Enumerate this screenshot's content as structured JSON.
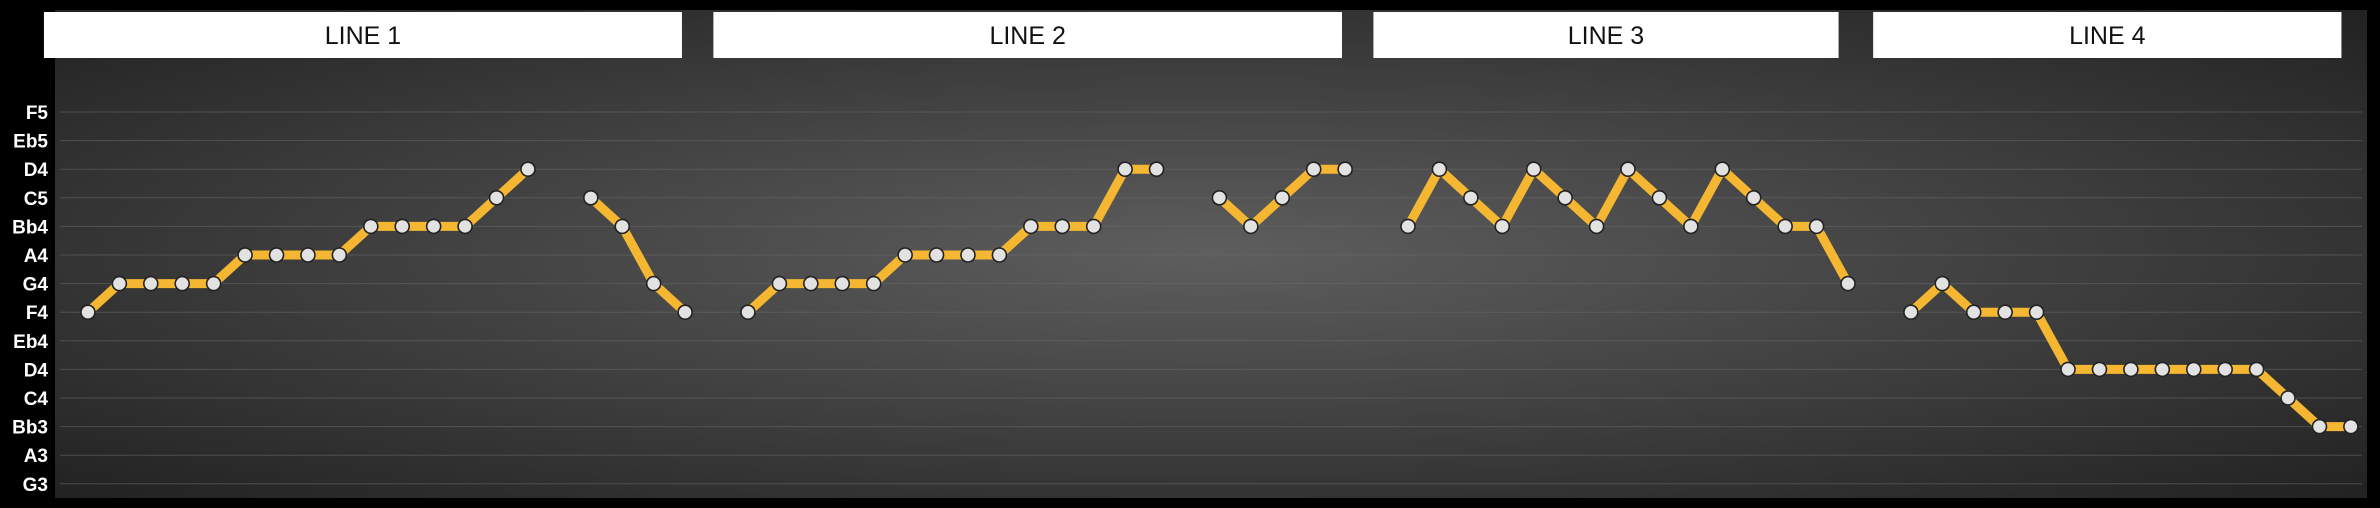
{
  "chart_data": {
    "type": "line",
    "ylabel_ticks": [
      "F5",
      "Eb5",
      "D4",
      "C5",
      "Bb4",
      "A4",
      "G4",
      "F4",
      "Eb4",
      "D4",
      "C4",
      "Bb3",
      "A3",
      "G3"
    ],
    "segments": [
      "LINE 1",
      "LINE 2",
      "LINE 3",
      "LINE 4"
    ],
    "phrases": [
      {
        "segment": 0,
        "x": [
          1,
          2,
          3,
          4,
          5,
          6,
          7,
          8,
          9,
          10,
          11,
          12,
          13,
          14,
          15
        ],
        "y": [
          7,
          6,
          6,
          6,
          6,
          5,
          5,
          5,
          5,
          4,
          4,
          4,
          4,
          3,
          2
        ]
      },
      {
        "segment": 0,
        "x": [
          17,
          18,
          19,
          20
        ],
        "y": [
          3,
          4,
          6,
          7
        ]
      },
      {
        "segment": 1,
        "x": [
          22,
          23,
          24,
          25,
          26,
          27,
          28,
          29,
          30,
          31,
          32,
          33,
          34,
          35
        ],
        "y": [
          7,
          6,
          6,
          6,
          6,
          5,
          5,
          5,
          5,
          4,
          4,
          4,
          2,
          2
        ]
      },
      {
        "segment": 1,
        "x": [
          37,
          38,
          39,
          40,
          41
        ],
        "y": [
          3,
          4,
          3,
          2,
          2
        ]
      },
      {
        "segment": 2,
        "x": [
          43,
          44,
          45,
          46,
          47,
          48,
          49,
          50,
          51,
          52,
          53,
          54,
          55,
          56,
          57
        ],
        "y": [
          4,
          2,
          3,
          4,
          2,
          3,
          4,
          2,
          3,
          4,
          2,
          3,
          4,
          4,
          6
        ]
      },
      {
        "segment": 3,
        "x": [
          59,
          60,
          61,
          62,
          63,
          64,
          65,
          66,
          67,
          68,
          69,
          70,
          71,
          72,
          73
        ],
        "y": [
          7,
          6,
          7,
          7,
          7,
          9,
          9,
          9,
          9,
          9,
          9,
          9,
          10,
          11,
          11
        ]
      }
    ],
    "colors": {
      "line": "#f5b731",
      "marker_fill": "#e2e2e2",
      "marker_stroke": "#222222",
      "background": "#000000",
      "panel_center": "#5e5e5e",
      "panel_edge": "#1e1e1e",
      "grid": "#6a6a6a",
      "header_bg": "#ffffff"
    },
    "grid": true,
    "legend": "none"
  }
}
